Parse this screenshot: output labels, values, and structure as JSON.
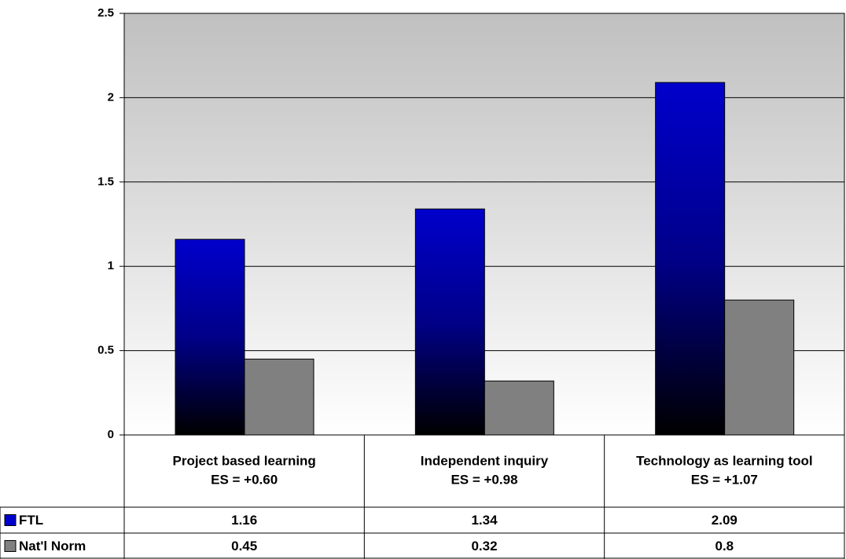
{
  "chart_data": {
    "type": "bar",
    "categories": [
      "Project based learning",
      "Independent inquiry",
      "Technology as learning tool"
    ],
    "es_labels": [
      "ES = +0.60",
      "ES = +0.98",
      "ES = +1.07"
    ],
    "series": [
      {
        "name": "FTL",
        "color": "#0000cc",
        "values": [
          1.16,
          1.34,
          2.09
        ]
      },
      {
        "name": "Nat'l Norm",
        "color": "#808080",
        "values": [
          0.45,
          0.32,
          0.8
        ]
      }
    ],
    "ylim": [
      0,
      2.5
    ],
    "yticks": [
      0,
      0.5,
      1,
      1.5,
      2,
      2.5
    ],
    "grid": true
  }
}
